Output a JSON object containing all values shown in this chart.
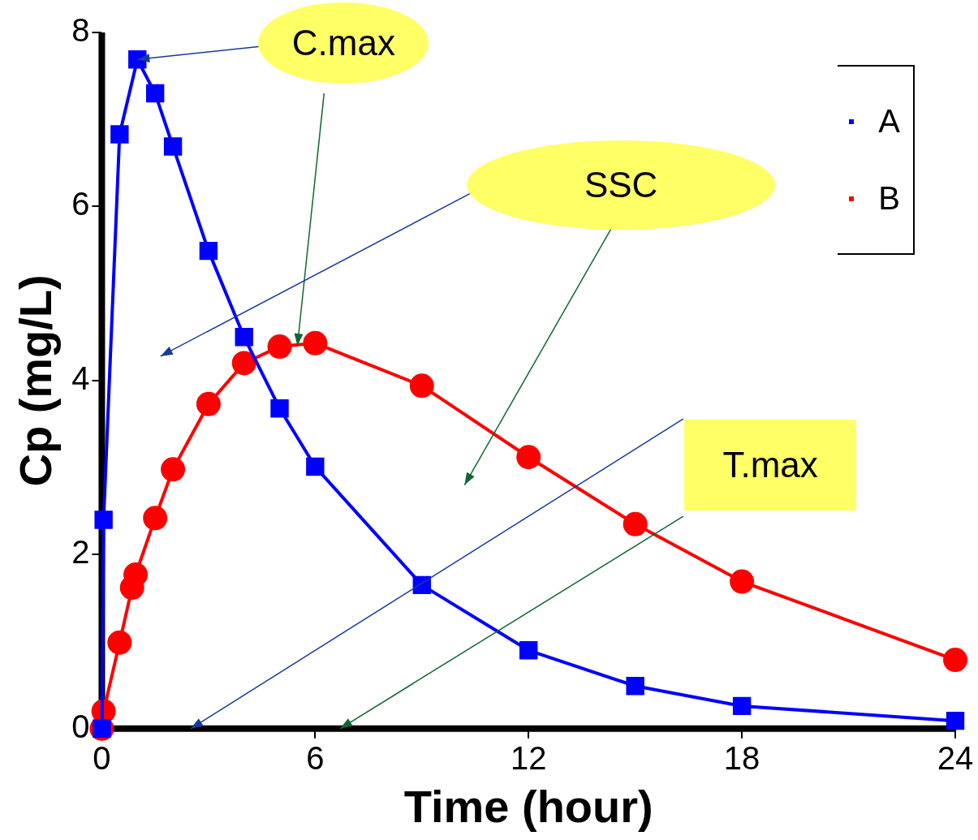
{
  "chart_data": {
    "type": "line",
    "xlabel": "Time (hour)",
    "ylabel": "Cp (mg/L)",
    "xlim": [
      0,
      24
    ],
    "ylim": [
      0,
      8
    ],
    "xticks": [
      0,
      6,
      12,
      18,
      24
    ],
    "yticks": [
      0,
      2,
      4,
      6,
      8
    ],
    "grid": false,
    "legend": "top right",
    "line_style": "solid",
    "series": [
      {
        "name": "A",
        "color": "#0000ff",
        "marker": "square",
        "x": [
          0,
          0.05,
          0.5,
          1,
          1.5,
          2,
          3,
          4,
          5,
          6,
          9,
          12,
          15,
          18,
          24
        ],
        "values": [
          0,
          2.4,
          6.83,
          7.69,
          7.3,
          6.69,
          5.49,
          4.5,
          3.68,
          3.01,
          1.65,
          0.9,
          0.49,
          0.26,
          0.09
        ]
      },
      {
        "name": "B",
        "color": "#ff0000",
        "marker": "circle",
        "x": [
          0,
          0.05,
          0.5,
          0.85,
          0.95,
          1.5,
          2,
          3,
          4,
          5,
          6,
          9,
          12,
          15,
          18,
          24
        ],
        "values": [
          0,
          0.2,
          0.99,
          1.62,
          1.77,
          2.42,
          2.98,
          3.73,
          4.2,
          4.39,
          4.43,
          3.94,
          3.12,
          2.35,
          1.69,
          0.79
        ]
      }
    ],
    "annotations": [
      {
        "text": "C.max",
        "x": 1,
        "y": 7.69
      },
      "SSC",
      "T.max"
    ]
  }
}
